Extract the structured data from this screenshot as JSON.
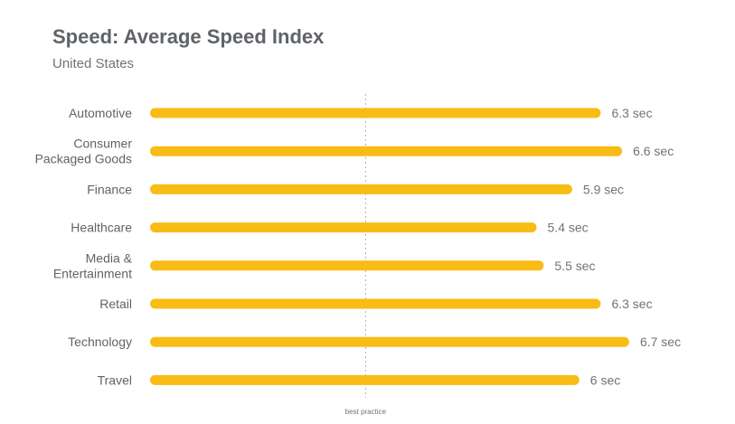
{
  "title": "Speed: Average Speed Index",
  "subtitle": "United States",
  "chart_data": {
    "type": "bar",
    "orientation": "horizontal",
    "title": "Speed: Average Speed Index",
    "subtitle": "United States",
    "categories": [
      [
        "Automotive"
      ],
      [
        "Consumer",
        "Packaged Goods"
      ],
      [
        "Finance"
      ],
      [
        "Healthcare"
      ],
      [
        "Media &",
        "Entertainment"
      ],
      [
        "Retail"
      ],
      [
        "Technology"
      ],
      [
        "Travel"
      ]
    ],
    "values": [
      6.3,
      6.6,
      5.9,
      5.4,
      5.5,
      6.3,
      6.7,
      6.0
    ],
    "value_labels": [
      "6.3 sec",
      "6.6 sec",
      "5.9 sec",
      "5.4 sec",
      "5.5 sec",
      "6.3 sec",
      "6.7 sec",
      "6 sec"
    ],
    "reference_line": {
      "value": 3.0,
      "label": "best practice"
    },
    "xlim": [
      0,
      8.2
    ],
    "bar_color": "#f9bc15",
    "reference_color": "#b0b0b0",
    "grid": false,
    "legend": "none"
  }
}
